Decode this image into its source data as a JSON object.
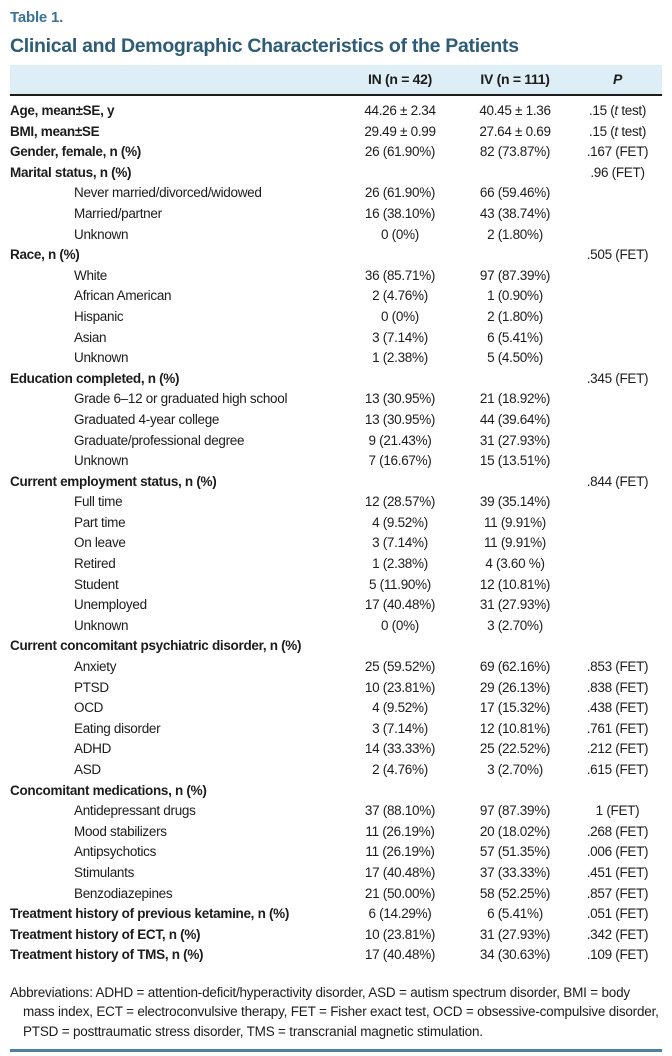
{
  "table": {
    "number": "Table 1.",
    "title": "Clinical and Demographic Characteristics of the Patients",
    "columns": [
      "IN (n = 42)",
      "IV (n = 111)",
      "P"
    ],
    "colors": {
      "table_number_blue": "#3a7395",
      "title_blue": "#2e5c77",
      "header_band_blue": "#ddeef7",
      "bottom_rule_blue": "#4f809c",
      "text": "#1c1c1c"
    },
    "rows": [
      {
        "label": "Age, mean±SE, y",
        "bold": true,
        "indent": false,
        "in": "44.26 ± 2.34",
        "iv": "40.45 ± 1.36",
        "p": ".15",
        "test": "t test"
      },
      {
        "label": "BMI, mean±SE",
        "bold": true,
        "indent": false,
        "in": "29.49 ± 0.99",
        "iv": "27.64 ± 0.69",
        "p": ".15",
        "test": "t test"
      },
      {
        "label": "Gender, female, n (%)",
        "bold": true,
        "indent": false,
        "in": "26 (61.90%)",
        "iv": "82 (73.87%)",
        "p": ".167",
        "test": "FET"
      },
      {
        "label": "Marital status, n (%)",
        "bold": true,
        "indent": false,
        "p": ".96",
        "test": "FET"
      },
      {
        "label": "Never married/divorced/widowed",
        "bold": false,
        "indent": true,
        "in": "26 (61.90%)",
        "iv": "66 (59.46%)"
      },
      {
        "label": "Married/partner",
        "bold": false,
        "indent": true,
        "in": "16 (38.10%)",
        "iv": "43 (38.74%)"
      },
      {
        "label": "Unknown",
        "bold": false,
        "indent": true,
        "in": "0 (0%)",
        "iv": "2 (1.80%)"
      },
      {
        "label": "Race, n (%)",
        "bold": true,
        "indent": false,
        "p": ".505",
        "test": "FET"
      },
      {
        "label": "White",
        "bold": false,
        "indent": true,
        "in": "36 (85.71%)",
        "iv": "97 (87.39%)"
      },
      {
        "label": "African American",
        "bold": false,
        "indent": true,
        "in": "2 (4.76%)",
        "iv": "1 (0.90%)"
      },
      {
        "label": "Hispanic",
        "bold": false,
        "indent": true,
        "in": "0 (0%)",
        "iv": "2 (1.80%)"
      },
      {
        "label": "Asian",
        "bold": false,
        "indent": true,
        "in": "3 (7.14%)",
        "iv": "6 (5.41%)"
      },
      {
        "label": "Unknown",
        "bold": false,
        "indent": true,
        "in": "1 (2.38%)",
        "iv": "5 (4.50%)"
      },
      {
        "label": "Education completed, n (%)",
        "bold": true,
        "indent": false,
        "p": ".345",
        "test": "FET"
      },
      {
        "label": "Grade 6–12 or graduated high school",
        "bold": false,
        "indent": true,
        "in": "13 (30.95%)",
        "iv": "21 (18.92%)"
      },
      {
        "label": "Graduated 4-year college",
        "bold": false,
        "indent": true,
        "in": "13 (30.95%)",
        "iv": "44 (39.64%)"
      },
      {
        "label": "Graduate/professional degree",
        "bold": false,
        "indent": true,
        "in": "9 (21.43%)",
        "iv": "31 (27.93%)"
      },
      {
        "label": "Unknown",
        "bold": false,
        "indent": true,
        "in": "7 (16.67%)",
        "iv": "15 (13.51%)"
      },
      {
        "label": "Current employment status, n (%)",
        "bold": true,
        "indent": false,
        "p": ".844",
        "test": "FET"
      },
      {
        "label": "Full time",
        "bold": false,
        "indent": true,
        "in": "12 (28.57%)",
        "iv": "39 (35.14%)"
      },
      {
        "label": "Part time",
        "bold": false,
        "indent": true,
        "in": "4 (9.52%)",
        "iv": "11 (9.91%)"
      },
      {
        "label": "On leave",
        "bold": false,
        "indent": true,
        "in": "3 (7.14%)",
        "iv": "11 (9.91%)"
      },
      {
        "label": "Retired",
        "bold": false,
        "indent": true,
        "in": "1 (2.38%)",
        "iv": "4 (3.60 %)"
      },
      {
        "label": "Student",
        "bold": false,
        "indent": true,
        "in": "5 (11.90%)",
        "iv": "12 (10.81%)"
      },
      {
        "label": "Unemployed",
        "bold": false,
        "indent": true,
        "in": "17 (40.48%)",
        "iv": "31 (27.93%)"
      },
      {
        "label": "Unknown",
        "bold": false,
        "indent": true,
        "in": "0 (0%)",
        "iv": "3 (2.70%)"
      },
      {
        "label": "Current concomitant psychiatric disorder, n (%)",
        "bold": true,
        "indent": false
      },
      {
        "label": "Anxiety",
        "bold": false,
        "indent": true,
        "in": "25 (59.52%)",
        "iv": "69 (62.16%)",
        "p": ".853",
        "test": "FET"
      },
      {
        "label": "PTSD",
        "bold": false,
        "indent": true,
        "in": "10 (23.81%)",
        "iv": "29 (26.13%)",
        "p": ".838",
        "test": "FET"
      },
      {
        "label": "OCD",
        "bold": false,
        "indent": true,
        "in": "4 (9.52%)",
        "iv": "17 (15.32%)",
        "p": ".438",
        "test": "FET"
      },
      {
        "label": "Eating disorder",
        "bold": false,
        "indent": true,
        "in": "3 (7.14%)",
        "iv": "12 (10.81%)",
        "p": ".761",
        "test": "FET"
      },
      {
        "label": "ADHD",
        "bold": false,
        "indent": true,
        "in": "14 (33.33%)",
        "iv": "25 (22.52%)",
        "p": ".212",
        "test": "FET"
      },
      {
        "label": "ASD",
        "bold": false,
        "indent": true,
        "in": "2 (4.76%)",
        "iv": "3 (2.70%)",
        "p": ".615",
        "test": "FET"
      },
      {
        "label": "Concomitant medications, n (%)",
        "bold": true,
        "indent": false
      },
      {
        "label": "Antidepressant drugs",
        "bold": false,
        "indent": true,
        "in": "37 (88.10%)",
        "iv": "97 (87.39%)",
        "p": "1",
        "test": "FET"
      },
      {
        "label": "Mood stabilizers",
        "bold": false,
        "indent": true,
        "in": "11 (26.19%)",
        "iv": "20 (18.02%)",
        "p": ".268",
        "test": "FET"
      },
      {
        "label": "Antipsychotics",
        "bold": false,
        "indent": true,
        "in": "11 (26.19%)",
        "iv": "57 (51.35%)",
        "p": ".006",
        "test": "FET"
      },
      {
        "label": "Stimulants",
        "bold": false,
        "indent": true,
        "in": "17 (40.48%)",
        "iv": "37 (33.33%)",
        "p": ".451",
        "test": "FET"
      },
      {
        "label": "Benzodiazepines",
        "bold": false,
        "indent": true,
        "in": "21 (50.00%)",
        "iv": "58 (52.25%)",
        "p": ".857",
        "test": "FET"
      },
      {
        "label": "Treatment history of previous ketamine, n (%)",
        "bold": true,
        "indent": false,
        "in": "6 (14.29%)",
        "iv": "6 (5.41%)",
        "p": ".051",
        "test": "FET"
      },
      {
        "label": "Treatment history of ECT, n (%)",
        "bold": true,
        "indent": false,
        "in": "10 (23.81%)",
        "iv": "31 (27.93%)",
        "p": ".342",
        "test": "FET"
      },
      {
        "label": "Treatment history of TMS, n (%)",
        "bold": true,
        "indent": false,
        "in": "17 (40.48%)",
        "iv": "34 (30.63%)",
        "p": ".109",
        "test": "FET"
      }
    ],
    "footnote": "Abbreviations: ADHD = attention-deficit/hyperactivity disorder, ASD = autism spectrum disorder, BMI = body mass index, ECT = electroconvulsive therapy, FET = Fisher exact test, OCD = obsessive-compulsive disorder, PTSD = posttraumatic stress disorder, TMS = transcranial magnetic stimulation."
  }
}
